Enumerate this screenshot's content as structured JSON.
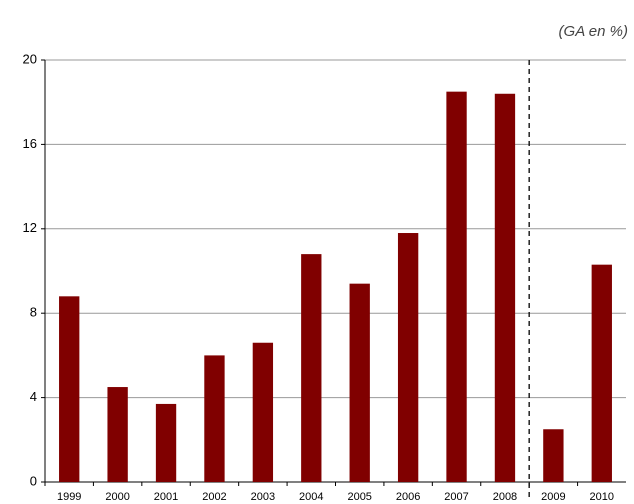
{
  "chart_data": {
    "type": "bar",
    "subtitle": "(GA en %)",
    "categories": [
      "1999",
      "2000",
      "2001",
      "2002",
      "2003",
      "2004",
      "2005",
      "2006",
      "2007",
      "2008",
      "2009",
      "2010"
    ],
    "values": [
      8.8,
      4.5,
      3.7,
      6.0,
      6.6,
      10.8,
      9.4,
      11.8,
      18.5,
      18.4,
      2.5,
      10.3
    ],
    "color": "#800000",
    "ylim": [
      0,
      20
    ],
    "yticks": [
      0,
      4,
      8,
      12,
      16,
      20
    ],
    "grid": true,
    "dashed_divider_before": "2009"
  }
}
